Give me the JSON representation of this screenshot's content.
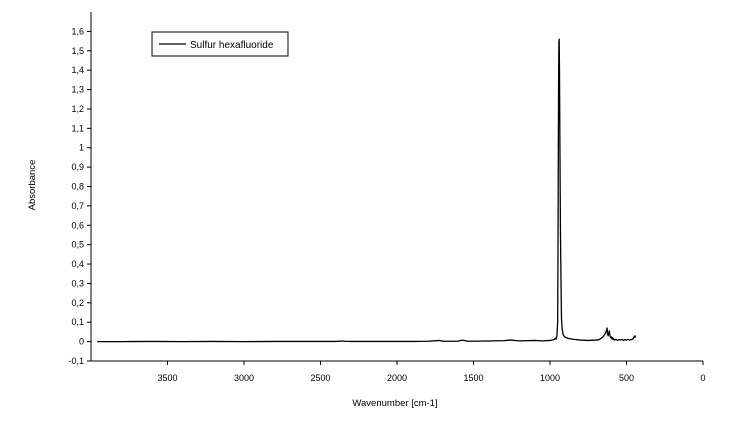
{
  "chart_data": {
    "type": "line",
    "title": "",
    "xlabel": "Wavenumber [cm-1]",
    "ylabel": "Absorbance",
    "xlim": [
      4000,
      0
    ],
    "ylim": [
      -0.1,
      1.7
    ],
    "x_reversed": true,
    "grid": false,
    "legend": {
      "placement": "top-left",
      "entries": [
        "Sulfur hexafluoride"
      ]
    },
    "x_ticks": [
      {
        "value": 3500,
        "label": "3500"
      },
      {
        "value": 3000,
        "label": "3000"
      },
      {
        "value": 2500,
        "label": "2500"
      },
      {
        "value": 2000,
        "label": "2000"
      },
      {
        "value": 1500,
        "label": "1500"
      },
      {
        "value": 1000,
        "label": "1000"
      },
      {
        "value": 500,
        "label": "500"
      },
      {
        "value": 0,
        "label": "0"
      }
    ],
    "y_ticks": [
      {
        "value": -0.1,
        "label": "-0,1"
      },
      {
        "value": 0,
        "label": "0"
      },
      {
        "value": 0.1,
        "label": "0,1"
      },
      {
        "value": 0.2,
        "label": "0,2"
      },
      {
        "value": 0.3,
        "label": "0,3"
      },
      {
        "value": 0.4,
        "label": "0,4"
      },
      {
        "value": 0.5,
        "label": "0,5"
      },
      {
        "value": 0.6,
        "label": "0,6"
      },
      {
        "value": 0.7,
        "label": "0,7"
      },
      {
        "value": 0.8,
        "label": "0,8"
      },
      {
        "value": 0.9,
        "label": "0,9"
      },
      {
        "value": 1,
        "label": "1"
      },
      {
        "value": 1.1,
        "label": "1,1"
      },
      {
        "value": 1.2,
        "label": "1,2"
      },
      {
        "value": 1.3,
        "label": "1,3"
      },
      {
        "value": 1.4,
        "label": "1,4"
      },
      {
        "value": 1.5,
        "label": "1,5"
      },
      {
        "value": 1.6,
        "label": "1,6"
      }
    ],
    "series": [
      {
        "name": "Sulfur hexafluoride",
        "color": "#000000",
        "x": [
          3960,
          3800,
          3600,
          3400,
          3200,
          3000,
          2800,
          2600,
          2400,
          2360,
          2340,
          2300,
          2100,
          1900,
          1800,
          1720,
          1700,
          1600,
          1580,
          1560,
          1540,
          1400,
          1300,
          1260,
          1200,
          1100,
          1050,
          1000,
          975,
          965,
          960,
          955,
          950,
          948,
          946,
          944,
          942,
          940,
          938,
          935,
          932,
          928,
          925,
          920,
          915,
          910,
          900,
          880,
          850,
          800,
          750,
          700,
          680,
          660,
          650,
          640,
          635,
          630,
          627,
          624,
          620,
          616,
          612,
          608,
          604,
          600,
          596,
          592,
          588,
          585,
          580,
          570,
          560,
          550,
          540,
          530,
          520,
          510,
          500,
          490,
          480,
          470,
          460,
          455,
          450,
          445,
          442
        ],
        "y": [
          0.0,
          0.0,
          0.001,
          0.0,
          0.001,
          0.0,
          0.001,
          0.001,
          0.001,
          0.003,
          0.002,
          0.001,
          0.001,
          0.001,
          0.002,
          0.006,
          0.002,
          0.002,
          0.007,
          0.006,
          0.002,
          0.003,
          0.005,
          0.008,
          0.004,
          0.006,
          0.004,
          0.006,
          0.01,
          0.018,
          0.012,
          0.03,
          0.1,
          0.4,
          0.9,
          1.3,
          1.54,
          1.56,
          1.4,
          1.0,
          0.6,
          0.3,
          0.12,
          0.06,
          0.04,
          0.03,
          0.022,
          0.016,
          0.012,
          0.008,
          0.006,
          0.008,
          0.01,
          0.02,
          0.028,
          0.04,
          0.05,
          0.06,
          0.07,
          0.04,
          0.03,
          0.045,
          0.055,
          0.03,
          0.02,
          0.025,
          0.015,
          0.02,
          0.01,
          0.016,
          0.008,
          0.012,
          0.006,
          0.01,
          0.008,
          0.012,
          0.006,
          0.01,
          0.008,
          0.012,
          0.008,
          0.01,
          0.012,
          0.018,
          0.025,
          0.03,
          0.02
        ]
      }
    ]
  }
}
